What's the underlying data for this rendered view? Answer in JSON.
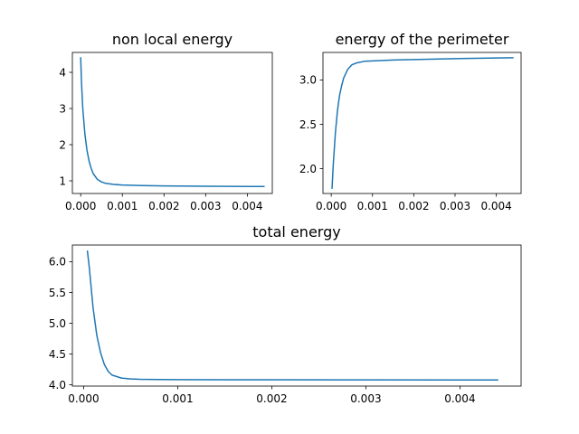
{
  "chart_data": [
    {
      "type": "line",
      "title": "non local energy",
      "xlabel": "",
      "ylabel": "",
      "xlim": [
        -0.0002,
        0.0046
      ],
      "ylim": [
        0.65,
        4.55
      ],
      "xticks": [
        0.0,
        0.001,
        0.002,
        0.003,
        0.004
      ],
      "xtick_labels": [
        "0.000",
        "0.001",
        "0.002",
        "0.003",
        "0.004"
      ],
      "yticks": [
        1,
        2,
        3,
        4
      ],
      "ytick_labels": [
        "1",
        "2",
        "3",
        "4"
      ],
      "grid": false,
      "series": [
        {
          "color": "#1f77b4",
          "x": [
            0.0,
            2e-05,
            5e-05,
            0.0001,
            0.00015,
            0.0002,
            0.00025,
            0.0003,
            0.0004,
            0.0005,
            0.0006,
            0.0008,
            0.001,
            0.0015,
            0.002,
            0.003,
            0.004,
            0.0044
          ],
          "y": [
            4.4,
            3.7,
            3.0,
            2.3,
            1.85,
            1.55,
            1.35,
            1.2,
            1.04,
            0.97,
            0.93,
            0.9,
            0.885,
            0.87,
            0.86,
            0.85,
            0.845,
            0.843
          ]
        }
      ]
    },
    {
      "type": "line",
      "title": "energy of the perimeter",
      "xlabel": "",
      "ylabel": "",
      "xlim": [
        -0.0002,
        0.0046
      ],
      "ylim": [
        1.72,
        3.31
      ],
      "xticks": [
        0.0,
        0.001,
        0.002,
        0.003,
        0.004
      ],
      "xtick_labels": [
        "0.000",
        "0.001",
        "0.002",
        "0.003",
        "0.004"
      ],
      "yticks": [
        2.0,
        2.5,
        3.0
      ],
      "ytick_labels": [
        "2.0",
        "2.5",
        "3.0"
      ],
      "grid": false,
      "series": [
        {
          "color": "#1f77b4",
          "x": [
            2e-05,
            5e-05,
            0.0001,
            0.00015,
            0.0002,
            0.00025,
            0.0003,
            0.0004,
            0.0005,
            0.0006,
            0.0008,
            0.001,
            0.0015,
            0.002,
            0.003,
            0.004,
            0.0044
          ],
          "y": [
            1.78,
            2.05,
            2.4,
            2.65,
            2.82,
            2.93,
            3.02,
            3.12,
            3.17,
            3.19,
            3.21,
            3.215,
            3.225,
            3.23,
            3.24,
            3.248,
            3.25
          ]
        }
      ]
    },
    {
      "type": "line",
      "title": "total energy",
      "xlabel": "",
      "ylabel": "",
      "xlim": [
        -0.00012,
        0.00465
      ],
      "ylim": [
        3.98,
        6.27
      ],
      "xticks": [
        0.0,
        0.001,
        0.002,
        0.003,
        0.004
      ],
      "xtick_labels": [
        "0.000",
        "0.001",
        "0.002",
        "0.003",
        "0.004"
      ],
      "yticks": [
        4.0,
        4.5,
        5.0,
        5.5,
        6.0
      ],
      "ytick_labels": [
        "4.0",
        "4.5",
        "5.0",
        "5.5",
        "6.0"
      ],
      "grid": false,
      "series": [
        {
          "color": "#1f77b4",
          "x": [
            4e-05,
            6e-05,
            0.0001,
            0.00014,
            0.00018,
            0.00022,
            0.00026,
            0.0003,
            0.0004,
            0.0005,
            0.0006,
            0.0008,
            0.001,
            0.0015,
            0.002,
            0.003,
            0.004,
            0.0044
          ],
          "y": [
            6.17,
            5.9,
            5.25,
            4.8,
            4.52,
            4.33,
            4.22,
            4.16,
            4.11,
            4.095,
            4.09,
            4.087,
            4.085,
            4.083,
            4.082,
            4.081,
            4.08,
            4.08
          ]
        }
      ]
    }
  ]
}
